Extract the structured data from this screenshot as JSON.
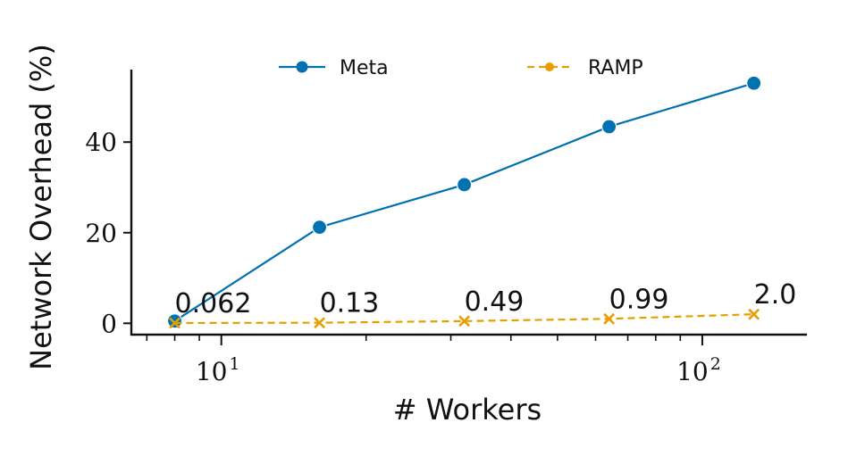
{
  "chart_data": {
    "type": "line",
    "xscale": "log",
    "xlabel": "# Workers",
    "ylabel": "Network Overhead (%)",
    "xlim": [
      6.5,
      165
    ],
    "ylim": [
      -2.5,
      56
    ],
    "x_ticks": [
      {
        "value": 10,
        "base": "10",
        "exp": "1"
      },
      {
        "value": 100,
        "base": "10",
        "exp": "2"
      }
    ],
    "y_ticks": [
      0,
      20,
      40
    ],
    "x": [
      8,
      16,
      32,
      64,
      128
    ],
    "series": [
      {
        "name": "Meta",
        "values": [
          0.5,
          21.2,
          30.6,
          43.4,
          53.0
        ],
        "color": "#0072b2",
        "marker": "circle",
        "line": "solid"
      },
      {
        "name": "RAMP",
        "values": [
          0.062,
          0.13,
          0.49,
          0.99,
          2.0
        ],
        "color": "#e69f00",
        "marker": "x",
        "line": "dashed"
      }
    ],
    "annotations": [
      "0.062",
      "0.13",
      "0.49",
      "0.99",
      "2.0"
    ],
    "legend": "top, horizontal",
    "grid": false
  }
}
